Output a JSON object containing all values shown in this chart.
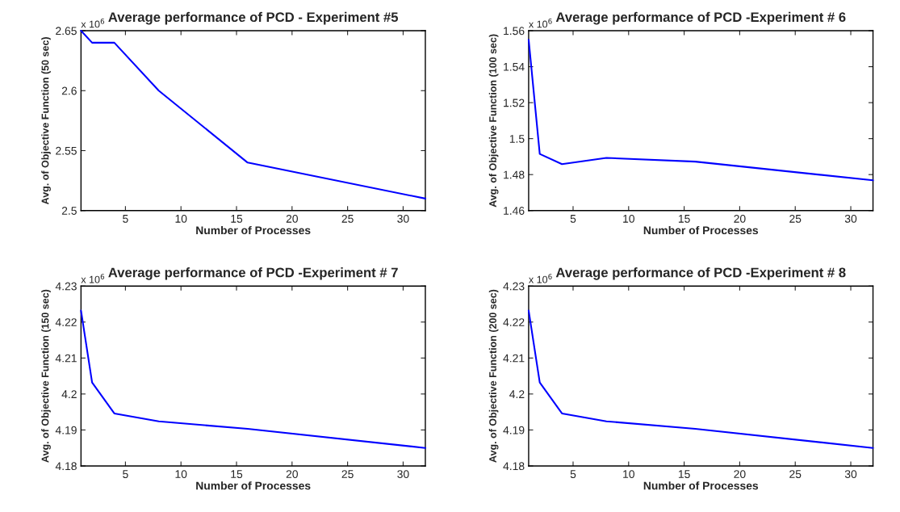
{
  "chart_data": [
    {
      "type": "line",
      "title": "Average performance of PCD - Experiment #5",
      "xlabel": "Number of Processes",
      "ylabel": "Avg. of Objective Function (50 sec)",
      "annotations": [
        "x 10$^{6}$"
      ],
      "x": [
        1,
        2,
        4,
        8,
        16,
        32
      ],
      "series": [
        {
          "color": "#0000ff",
          "values": [
            2.65,
            2.64,
            2.64,
            2.6,
            2.54,
            2.51
          ]
        }
      ],
      "xlim": [
        1,
        32
      ],
      "xticks": [
        5,
        10,
        15,
        20,
        25,
        30
      ],
      "ylim": [
        2.5,
        2.65
      ],
      "yticks": [
        2.5,
        2.55,
        2.6,
        2.65
      ],
      "grid": false,
      "legend": false
    },
    {
      "type": "line",
      "title": "Average performance of PCD -Experiment # 6",
      "xlabel": "Number of Processes",
      "ylabel": "Avg. of Objective Function (100 sec)",
      "annotations": [
        "x 10$^{6}$"
      ],
      "x": [
        1,
        2,
        4,
        8,
        16,
        32
      ],
      "series": [
        {
          "color": "#0000ff",
          "values": [
            1.555,
            1.4915,
            1.4858,
            1.4893,
            1.4872,
            1.4768
          ]
        }
      ],
      "xlim": [
        1,
        32
      ],
      "xticks": [
        5,
        10,
        15,
        20,
        25,
        30
      ],
      "ylim": [
        1.46,
        1.56
      ],
      "yticks": [
        1.46,
        1.48,
        1.5,
        1.52,
        1.54,
        1.56
      ],
      "grid": false,
      "legend": false
    },
    {
      "type": "line",
      "title": "Average performance of PCD -Experiment # 7",
      "xlabel": "Number of Processes",
      "ylabel": "Avg. of Objective Function (150 sec)",
      "annotations": [
        "x 10$^{6}$"
      ],
      "x": [
        1,
        2,
        4,
        8,
        16,
        32
      ],
      "series": [
        {
          "color": "#0000ff",
          "values": [
            4.2232,
            4.2032,
            4.1946,
            4.1924,
            4.1903,
            4.185
          ]
        }
      ],
      "xlim": [
        1,
        32
      ],
      "xticks": [
        5,
        10,
        15,
        20,
        25,
        30
      ],
      "ylim": [
        4.18,
        4.23
      ],
      "yticks": [
        4.18,
        4.19,
        4.2,
        4.21,
        4.22,
        4.23
      ],
      "grid": false,
      "legend": false
    },
    {
      "type": "line",
      "title": "Average performance of PCD -Experiment # 8",
      "xlabel": "Number of Processes",
      "ylabel": "Avg. of Objective Function (200 sec)",
      "annotations": [
        "x 10$^{6}$"
      ],
      "x": [
        1,
        2,
        4,
        8,
        16,
        32
      ],
      "series": [
        {
          "color": "#0000ff",
          "values": [
            4.2232,
            4.2032,
            4.1946,
            4.1924,
            4.1903,
            4.185
          ]
        }
      ],
      "xlim": [
        1,
        32
      ],
      "xticks": [
        5,
        10,
        15,
        20,
        25,
        30
      ],
      "ylim": [
        4.18,
        4.23
      ],
      "yticks": [
        4.18,
        4.19,
        4.2,
        4.21,
        4.22,
        4.23
      ],
      "grid": false,
      "legend": false
    }
  ]
}
